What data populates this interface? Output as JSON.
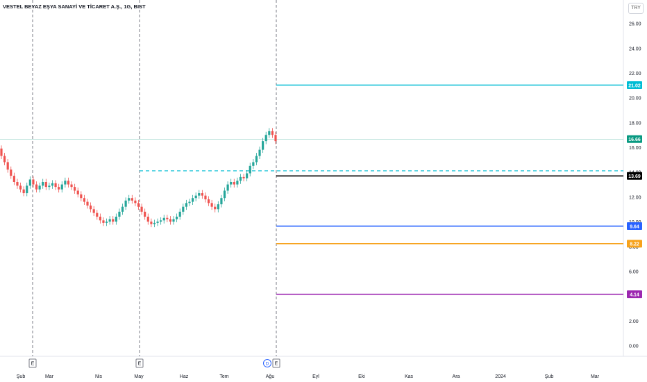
{
  "header": {
    "title": "VESTEL BEYAZ EŞYA SANAYİ VE TİCARET A.Ş., 1G, BIST",
    "currency": "TRY"
  },
  "colors": {
    "up": "#26a69a",
    "down": "#ef5350",
    "cyan": "#00bcd4",
    "black": "#000000",
    "blue": "#2962ff",
    "orange": "#f7a21b",
    "purple": "#9c27b0",
    "last_price": "#089981",
    "dashed_cyan": "#26c6da"
  },
  "chart_data": {
    "type": "candlestick",
    "instrument": "VESTEL BEYAZ EŞYA SANAYİ VE TİCARET A.Ş.",
    "timeframe": "1G",
    "exchange": "BIST",
    "currency": "TRY",
    "x_ticks": [
      "Şub",
      "Mar",
      "Nis",
      "May",
      "Haz",
      "Tem",
      "Ağu",
      "Eyl",
      "Eki",
      "Kas",
      "Ara",
      "2024",
      "Şub",
      "Mar"
    ],
    "y_ticks": [
      "0.00",
      "2.00",
      "4.00",
      "6.00",
      "8.00",
      "10.00",
      "12.00",
      "14.00",
      "16.00",
      "18.00",
      "20.00",
      "22.00",
      "24.00",
      "26.00"
    ],
    "ylim": [
      0,
      26
    ],
    "last_price": {
      "label": "16.66",
      "value": 16.66
    },
    "closes": [
      15.3,
      14.8,
      14.2,
      13.7,
      13.2,
      12.9,
      12.6,
      12.3,
      12.9,
      13.4,
      13.0,
      12.6,
      12.9,
      13.2,
      12.8,
      12.9,
      13.1,
      12.8,
      12.6,
      13.0,
      13.3,
      13.0,
      12.8,
      12.5,
      12.2,
      11.9,
      11.6,
      11.3,
      11.0,
      10.7,
      10.4,
      10.1,
      9.9,
      10.0,
      10.2,
      10.0,
      10.4,
      10.8,
      11.2,
      11.7,
      11.9,
      11.7,
      11.5,
      11.2,
      10.8,
      10.4,
      10.0,
      9.8,
      9.9,
      10.0,
      10.1,
      10.3,
      10.2,
      10.0,
      10.2,
      10.4,
      10.8,
      11.2,
      11.5,
      11.6,
      11.9,
      12.1,
      12.3,
      12.1,
      11.8,
      11.5,
      11.2,
      11.0,
      11.4,
      11.9,
      12.5,
      13.0,
      13.2,
      13.0,
      13.3,
      13.6,
      13.5,
      13.9,
      14.5,
      14.8,
      15.3,
      15.8,
      16.5,
      17.0,
      17.3,
      17.0,
      16.5
    ],
    "horizontal_levels": [
      {
        "value": 21.02,
        "label": "21.02",
        "color_key": "cyan"
      },
      {
        "value": 14.1,
        "label": "",
        "color_key": "dashed_cyan",
        "dashed": true
      },
      {
        "value": 13.69,
        "label": "13.69",
        "color_key": "black"
      },
      {
        "value": 9.64,
        "label": "9.64",
        "color_key": "blue"
      },
      {
        "value": 8.22,
        "label": "8.22",
        "color_key": "orange"
      },
      {
        "value": 4.14,
        "label": "4.14",
        "color_key": "purple"
      }
    ],
    "event_markers": [
      {
        "label": "E",
        "tick": "Şub"
      },
      {
        "label": "E",
        "tick": "May"
      },
      {
        "label": "D",
        "tick": "Ağu",
        "circle": true
      },
      {
        "label": "E",
        "tick": "Ağu"
      }
    ],
    "grid": false
  }
}
